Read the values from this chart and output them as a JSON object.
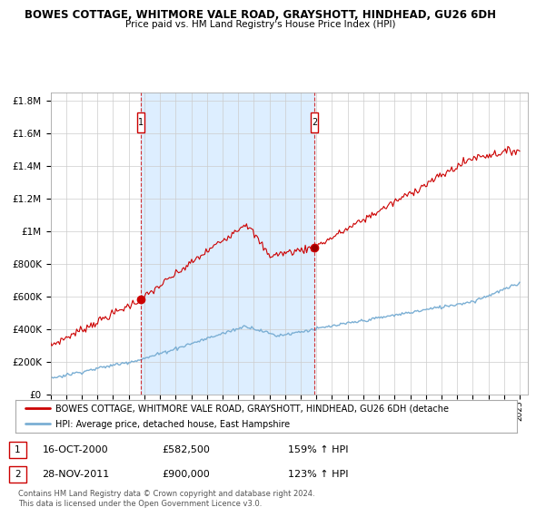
{
  "title1": "BOWES COTTAGE, WHITMORE VALE ROAD, GRAYSHOTT, HINDHEAD, GU26 6DH",
  "title2": "Price paid vs. HM Land Registry's House Price Index (HPI)",
  "background_color": "#ffffff",
  "plot_bg_color": "#ffffff",
  "grid_color": "#cccccc",
  "red_line_color": "#cc0000",
  "blue_line_color": "#7bafd4",
  "shade_color": "#ddeeff",
  "sale1_date": "16-OCT-2000",
  "sale1_price": 582500,
  "sale1_label": "159% ↑ HPI",
  "sale2_date": "28-NOV-2011",
  "sale2_price": 900000,
  "sale2_label": "123% ↑ HPI",
  "legend_red": "BOWES COTTAGE, WHITMORE VALE ROAD, GRAYSHOTT, HINDHEAD, GU26 6DH (detache",
  "legend_blue": "HPI: Average price, detached house, East Hampshire",
  "footer": "Contains HM Land Registry data © Crown copyright and database right 2024.\nThis data is licensed under the Open Government Licence v3.0.",
  "ylim_max": 1850000,
  "xmin": 1995,
  "xmax": 2025.5,
  "sale1_t": 2000.792,
  "sale2_t": 2011.875
}
